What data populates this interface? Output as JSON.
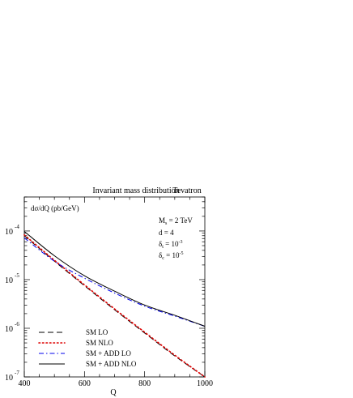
{
  "chart_data": {
    "type": "line",
    "title": "Invariant mass distribution",
    "title_right": "Tevatron",
    "ylabel": "dσ/dQ (pb/GeV)",
    "xlabel": "Q",
    "x_scale": "linear",
    "y_scale": "log",
    "xlim": [
      400,
      1000
    ],
    "ylim": [
      1e-07,
      0.0005
    ],
    "x_ticks": [
      "400",
      "600",
      "800",
      "1000"
    ],
    "y_ticks": [
      {
        "value": 0.0001,
        "mantissa": "10",
        "exponent": "-4"
      },
      {
        "value": 1e-05,
        "mantissa": "10",
        "exponent": "-5"
      },
      {
        "value": 1e-06,
        "mantissa": "10",
        "exponent": "-6"
      },
      {
        "value": 1e-07,
        "mantissa": "10",
        "exponent": "-7"
      }
    ],
    "annotations": [
      {
        "base": "M",
        "sub": "s",
        "rest": " = 2 TeV"
      },
      {
        "base": "d = 4",
        "sub": "",
        "rest": ""
      },
      {
        "base": "δ",
        "sub": "t",
        "rest": " = 10",
        "sup": "-3"
      },
      {
        "base": "δ",
        "sub": "c",
        "rest": " = 10",
        "sup": "-5"
      }
    ],
    "legend_position": "bottom-left",
    "series": [
      {
        "name": "SM LO",
        "color": "#000000",
        "style": "dashed",
        "x": [
          400,
          500,
          600,
          700,
          800,
          900,
          1000
        ],
        "y": [
          8e-05,
          2.4e-05,
          7.5e-06,
          2.4e-06,
          8e-07,
          2.7e-07,
          1e-07
        ]
      },
      {
        "name": "SM NLO",
        "color": "#dd0000",
        "style": "dotted",
        "x": [
          400,
          500,
          600,
          700,
          800,
          900,
          1000
        ],
        "y": [
          8.3e-05,
          2.5e-05,
          7.8e-06,
          2.5e-06,
          8.3e-07,
          2.8e-07,
          1e-07
        ]
      },
      {
        "name": "SM + ADD LO",
        "color": "#0000ee",
        "style": "dashdot",
        "x": [
          400,
          500,
          600,
          700,
          800,
          900,
          1000
        ],
        "y": [
          7.2e-05,
          2.4e-05,
          1.07e-05,
          5.3e-06,
          2.85e-06,
          1.78e-06,
          1.1e-06
        ]
      },
      {
        "name": "SM + ADD NLO",
        "color": "#000000",
        "style": "solid",
        "x": [
          400,
          500,
          600,
          700,
          800,
          900,
          1000
        ],
        "y": [
          9.8e-05,
          3.1e-05,
          1.2e-05,
          5.8e-06,
          3e-06,
          1.85e-06,
          1.1e-06
        ]
      }
    ]
  }
}
